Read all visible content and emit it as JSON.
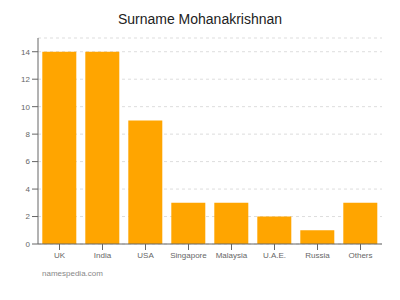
{
  "chart_data": {
    "type": "bar",
    "title": "Surname Mohanakrishnan",
    "categories": [
      "UK",
      "India",
      "USA",
      "Singapore",
      "Malaysia",
      "U.A.E.",
      "Russia",
      "Others"
    ],
    "values": [
      14,
      14,
      9,
      3,
      3,
      2,
      1,
      3
    ],
    "color": "#FFA500",
    "ylim": [
      0,
      15
    ],
    "yticks": [
      0,
      2,
      4,
      6,
      8,
      10,
      12,
      14
    ],
    "grid": true,
    "annotations": [
      "namespedia.com"
    ]
  }
}
